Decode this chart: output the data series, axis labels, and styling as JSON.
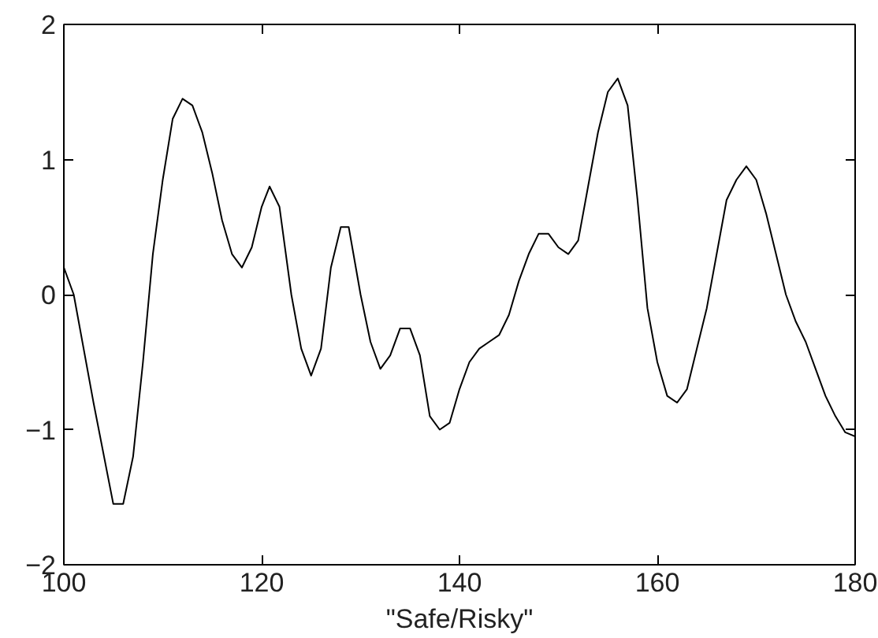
{
  "chart_data": {
    "type": "line",
    "xlabel": "\"Safe/Risky\"",
    "x": [
      100,
      101,
      103,
      105,
      106,
      107,
      108,
      109,
      110,
      111,
      112,
      113,
      114,
      115,
      116,
      117,
      118,
      119,
      120,
      120.8,
      121.8,
      123,
      124,
      125,
      126,
      127,
      128,
      128.8,
      130,
      131,
      132,
      133,
      134,
      135,
      136,
      137,
      138,
      139,
      140,
      141,
      142,
      143,
      144,
      145,
      146,
      147,
      148,
      149,
      150,
      151,
      152,
      153,
      154,
      155,
      156,
      157,
      158,
      159,
      160,
      161,
      162,
      163,
      164,
      165,
      166,
      167,
      168,
      169,
      170,
      171,
      172,
      173,
      174,
      175,
      176,
      177,
      178,
      179,
      180
    ],
    "series": [
      {
        "color": "#000000",
        "values": [
          0.2,
          0.0,
          -0.8,
          -1.55,
          -1.55,
          -1.2,
          -0.5,
          0.3,
          0.85,
          1.3,
          1.45,
          1.4,
          1.2,
          0.9,
          0.55,
          0.3,
          0.2,
          0.35,
          0.65,
          0.8,
          0.65,
          0.0,
          -0.4,
          -0.6,
          -0.4,
          0.2,
          0.5,
          0.5,
          0.0,
          -0.35,
          -0.55,
          -0.45,
          -0.25,
          -0.25,
          -0.45,
          -0.9,
          -1.0,
          -0.95,
          -0.7,
          -0.5,
          -0.4,
          -0.35,
          -0.3,
          -0.15,
          0.1,
          0.3,
          0.45,
          0.45,
          0.35,
          0.3,
          0.4,
          0.8,
          1.2,
          1.5,
          1.6,
          1.4,
          0.7,
          -0.1,
          -0.5,
          -0.75,
          -0.8,
          -0.7,
          -0.4,
          -0.1,
          0.3,
          0.7,
          0.85,
          0.95,
          0.85,
          0.6,
          0.3,
          0.0,
          -0.2,
          -0.35,
          -0.55,
          -0.75,
          -0.9,
          -1.02,
          -1.05
        ]
      }
    ],
    "xlim": [
      100,
      180
    ],
    "ylim": [
      -2,
      2
    ],
    "xticks": [
      100,
      120,
      140,
      160,
      180
    ],
    "yticks": [
      -2,
      -1,
      0,
      1,
      2
    ],
    "grid": false
  }
}
